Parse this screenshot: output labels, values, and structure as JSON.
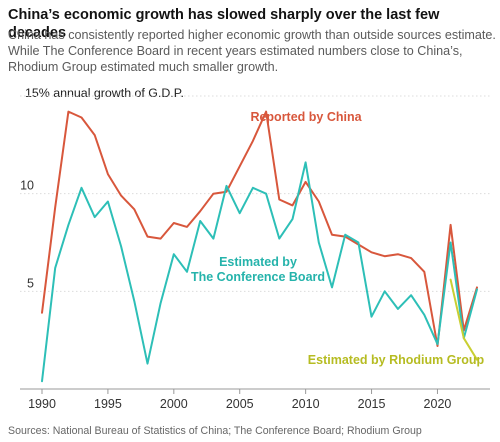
{
  "header": {
    "title": "China’s economic growth has slowed sharply over the last few decades",
    "subtitle": "China has consistently reported higher economic growth than outside sources estimate. While The Conference Board in recent years estimated numbers close to China’s, Rhodium Group estimated much smaller growth."
  },
  "footer": {
    "source": "Sources: National Bureau of Statistics of China; The Conference Board; Rhodium Group"
  },
  "chart_data": {
    "type": "line",
    "ylabel": "15% annual growth of G.D.P.",
    "ylim": [
      0,
      15
    ],
    "xlim": [
      1990,
      2023
    ],
    "x_ticks": [
      1990,
      1995,
      2000,
      2005,
      2010,
      2015,
      2020
    ],
    "y_ticks": [
      {
        "value": 15,
        "label": "15% annual growth of G.D.P."
      },
      {
        "value": 10,
        "label": "10"
      },
      {
        "value": 5,
        "label": "5"
      }
    ],
    "grid": true,
    "series": [
      {
        "name": "Reported by China",
        "color": "#d8573c",
        "x": [
          1990,
          1991,
          1992,
          1993,
          1994,
          1995,
          1996,
          1997,
          1998,
          1999,
          2000,
          2001,
          2002,
          2003,
          2004,
          2005,
          2006,
          2007,
          2008,
          2009,
          2010,
          2011,
          2012,
          2013,
          2014,
          2015,
          2016,
          2017,
          2018,
          2019,
          2020,
          2021,
          2022,
          2023
        ],
        "values": [
          3.9,
          9.3,
          14.2,
          13.9,
          13.0,
          11.0,
          9.9,
          9.2,
          7.8,
          7.7,
          8.5,
          8.3,
          9.1,
          10.0,
          10.1,
          11.4,
          12.7,
          14.2,
          9.7,
          9.4,
          10.6,
          9.6,
          7.9,
          7.8,
          7.4,
          7.0,
          6.8,
          6.9,
          6.7,
          6.0,
          2.2,
          8.4,
          3.0,
          5.2
        ]
      },
      {
        "name": "Estimated by The Conference Board",
        "color": "#2dbfb7",
        "x": [
          1990,
          1991,
          1992,
          1993,
          1994,
          1995,
          1996,
          1997,
          1998,
          1999,
          2000,
          2001,
          2002,
          2003,
          2004,
          2005,
          2006,
          2007,
          2008,
          2009,
          2010,
          2011,
          2012,
          2013,
          2014,
          2015,
          2016,
          2017,
          2018,
          2019,
          2020,
          2021,
          2022,
          2023
        ],
        "values": [
          0.4,
          6.2,
          8.4,
          10.3,
          8.8,
          9.6,
          7.3,
          4.5,
          1.3,
          4.4,
          6.9,
          6.0,
          8.6,
          7.7,
          10.4,
          9.0,
          10.3,
          10.0,
          7.7,
          8.7,
          11.6,
          7.5,
          5.2,
          7.9,
          7.5,
          3.7,
          5.0,
          4.1,
          4.8,
          3.8,
          2.3,
          7.5,
          2.6,
          5.1
        ]
      },
      {
        "name": "Estimated by Rhodium Group",
        "color": "#c9cf32",
        "x": [
          2021,
          2022,
          2023
        ],
        "values": [
          5.6,
          2.6,
          1.5
        ]
      }
    ],
    "annotations": [
      {
        "text": "Reported by China",
        "series": 0
      },
      {
        "text": "Estimated by\nThe Conference Board",
        "series": 1
      },
      {
        "text": "Estimated by Rhodium Group",
        "series": 2
      }
    ]
  }
}
